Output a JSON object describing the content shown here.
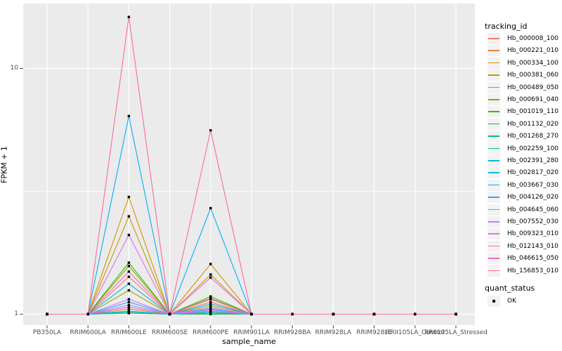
{
  "figure": {
    "background": "#FFFFFF",
    "panel_bg": "#EBEBEB",
    "grid_color": "#FFFFFF",
    "axis_text_color": "#4D4D4D",
    "tick_color": "#333333"
  },
  "chart_data": {
    "type": "line",
    "title": "",
    "xlabel": "sample_name",
    "ylabel": "FPKM + 1",
    "y_scale": "log10",
    "grid": true,
    "legend_position": "right",
    "legend_title": "tracking_id",
    "y_ticks": [
      {
        "label": "10",
        "value": 10
      },
      {
        "label": "1",
        "value": 1
      }
    ],
    "y_minor_breaks": [
      3.1623
    ],
    "marker": {
      "shape": "filled-square",
      "color": "#000000"
    },
    "quant_status": {
      "title": "quant_status",
      "items": [
        {
          "label": "OK",
          "marker": "filled-square",
          "color": "#000000"
        }
      ]
    },
    "categories": [
      "PB350LA",
      "RRIM600LA",
      "RRIM600LE",
      "RRIM600SE",
      "RRIM600PE",
      "RRIM901LA",
      "RRIM928BA",
      "RRIM928LA",
      "RRIM928LE",
      "RRII105LA_Control",
      "RRII105LA_Stressed"
    ],
    "series": [
      {
        "name": "Hb_000008_100",
        "color": "#F8766D",
        "values": [
          1,
          1,
          1.42,
          1,
          1.12,
          1,
          1,
          1,
          1,
          1,
          1
        ]
      },
      {
        "name": "Hb_000221_010",
        "color": "#EB8335",
        "values": [
          1,
          1,
          1.05,
          1,
          1.03,
          1,
          1,
          1,
          1,
          1,
          1
        ]
      },
      {
        "name": "Hb_000334_100",
        "color": "#D89000",
        "values": [
          1,
          1,
          3.0,
          1,
          1.6,
          1,
          1,
          1,
          1,
          1,
          1
        ]
      },
      {
        "name": "Hb_000381_060",
        "color": "#C09B00",
        "values": [
          1,
          1,
          2.5,
          1,
          1.45,
          1,
          1,
          1,
          1,
          1,
          1
        ]
      },
      {
        "name": "Hb_000489_050",
        "color": "#A3A500",
        "values": [
          1,
          1,
          1.25,
          1,
          1.08,
          1,
          1,
          1,
          1,
          1,
          1
        ]
      },
      {
        "name": "Hb_000691_040",
        "color": "#7CAE00",
        "values": [
          1,
          1,
          1.57,
          1,
          1.16,
          1,
          1,
          1,
          1,
          1,
          1
        ]
      },
      {
        "name": "Hb_001019_110",
        "color": "#39B600",
        "values": [
          1,
          1,
          1.62,
          1,
          1.18,
          1,
          1,
          1,
          1,
          1,
          1
        ]
      },
      {
        "name": "Hb_001132_020",
        "color": "#00BB4E",
        "values": [
          1,
          1,
          1.01,
          1,
          1.0,
          1,
          1,
          1,
          1,
          1,
          1
        ]
      },
      {
        "name": "Hb_001268_270",
        "color": "#00BF7D",
        "values": [
          1,
          1,
          1.01,
          1,
          1.01,
          1,
          1,
          1,
          1,
          1,
          1
        ]
      },
      {
        "name": "Hb_002259_100",
        "color": "#00C1A3",
        "values": [
          1,
          1,
          1.02,
          1,
          1.01,
          1,
          1,
          1,
          1,
          1,
          1
        ]
      },
      {
        "name": "Hb_002391_280",
        "color": "#00BFC4",
        "values": [
          1,
          1,
          1.03,
          1,
          1.02,
          1,
          1,
          1,
          1,
          1,
          1
        ]
      },
      {
        "name": "Hb_002817_020",
        "color": "#00BAE0",
        "values": [
          1,
          1,
          1.33,
          1,
          1.1,
          1,
          1,
          1,
          1,
          1,
          1
        ]
      },
      {
        "name": "Hb_003667_030",
        "color": "#00B0F6",
        "values": [
          1,
          1,
          6.4,
          1,
          2.7,
          1,
          1,
          1,
          1,
          1,
          1
        ]
      },
      {
        "name": "Hb_004126_020",
        "color": "#35A2FF",
        "values": [
          1,
          1,
          1.12,
          1,
          1.05,
          1,
          1,
          1,
          1,
          1,
          1
        ]
      },
      {
        "name": "Hb_004645_060",
        "color": "#9590FF",
        "values": [
          1,
          1,
          1.09,
          1,
          1.04,
          1,
          1,
          1,
          1,
          1,
          1
        ]
      },
      {
        "name": "Hb_007552_030",
        "color": "#C77CFF",
        "values": [
          1,
          1,
          1.15,
          1,
          1.06,
          1,
          1,
          1,
          1,
          1,
          1
        ]
      },
      {
        "name": "Hb_009323_010",
        "color": "#E76BF3",
        "values": [
          1,
          1,
          2.1,
          1,
          1.41,
          1,
          1,
          1,
          1,
          1,
          1
        ]
      },
      {
        "name": "Hb_012143_010",
        "color": "#FA62DB",
        "values": [
          1,
          1,
          1.07,
          1,
          1.03,
          1,
          1,
          1,
          1,
          1,
          1
        ]
      },
      {
        "name": "Hb_046615_050",
        "color": "#FF62BC",
        "values": [
          1,
          1,
          1.49,
          1,
          1.15,
          1,
          1,
          1,
          1,
          1,
          1
        ]
      },
      {
        "name": "Hb_156853_010",
        "color": "#FF6A98",
        "values": [
          1,
          1,
          16.2,
          1,
          5.6,
          1,
          1,
          1,
          1,
          1,
          1
        ]
      }
    ]
  }
}
